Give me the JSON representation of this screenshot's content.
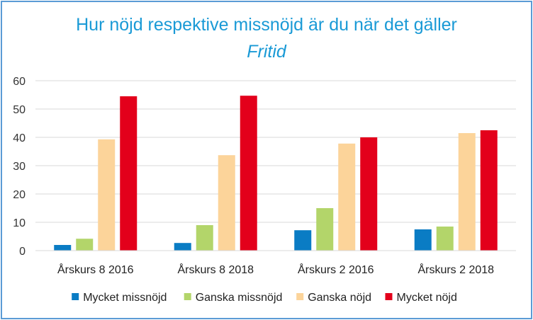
{
  "chart_data": {
    "type": "bar",
    "title": "Hur nöjd respektive missnöjd är du när det gäller",
    "subtitle": "Fritid",
    "categories": [
      "Årskurs 8 2016",
      "Årskurs 8 2018",
      "Årskurs 2 2016",
      "Årskurs 2 2018"
    ],
    "series": [
      {
        "name": "Mycket missnöjd",
        "color": "#0a7cc4",
        "values": [
          2,
          2.7,
          7.2,
          7.5
        ]
      },
      {
        "name": "Ganska missnöjd",
        "color": "#b3d56a",
        "values": [
          4.2,
          9,
          15,
          8.5
        ]
      },
      {
        "name": "Ganska nöjd",
        "color": "#fcd49a",
        "values": [
          39.3,
          33.7,
          37.8,
          41.5
        ]
      },
      {
        "name": "Mycket nöjd",
        "color": "#e3001b",
        "values": [
          54.5,
          54.7,
          40,
          42.5
        ]
      }
    ],
    "yticks": [
      0,
      10,
      20,
      30,
      40,
      50,
      60
    ],
    "ylim": [
      0,
      60
    ],
    "grid": true,
    "legend_position": "bottom"
  }
}
